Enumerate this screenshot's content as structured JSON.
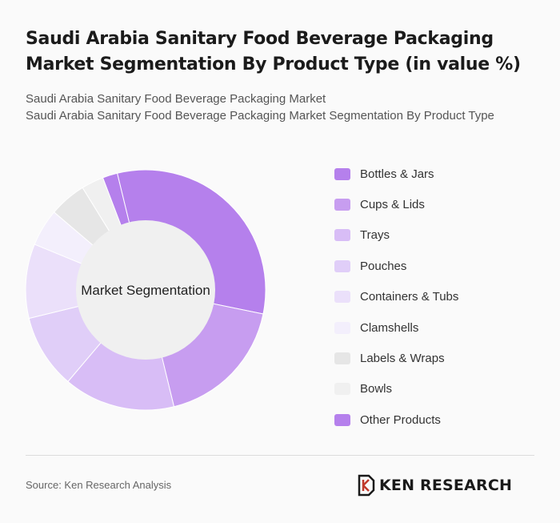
{
  "header": {
    "title": "Saudi Arabia Sanitary Food Beverage Packaging Market Segmentation By Product Type (in value %)",
    "subtitle_line1": "Saudi Arabia Sanitary Food Beverage Packaging Market",
    "subtitle_line2": "Saudi Arabia Sanitary Food Beverage Packaging Market Segmentation By Product Type"
  },
  "chart_data": {
    "type": "pie",
    "variant": "donut",
    "center_label": "Market Segmentation",
    "categories": [
      "Bottles & Jars",
      "Cups & Lids",
      "Trays",
      "Pouches",
      "Containers & Tubs",
      "Clamshells",
      "Labels & Wraps",
      "Bowls",
      "Other Products"
    ],
    "values": [
      32,
      18,
      15,
      10,
      10,
      5,
      5,
      3,
      2
    ],
    "colors": [
      "#b580ec",
      "#c79df0",
      "#d8bdf6",
      "#e0cef8",
      "#ebe0fa",
      "#f3effc",
      "#e6e6e6",
      "#f0f0f0",
      "#b580ec"
    ],
    "legend_position": "right"
  },
  "footer": {
    "source": "Source: Ken Research Analysis",
    "logo_text": "KEN RESEARCH"
  }
}
